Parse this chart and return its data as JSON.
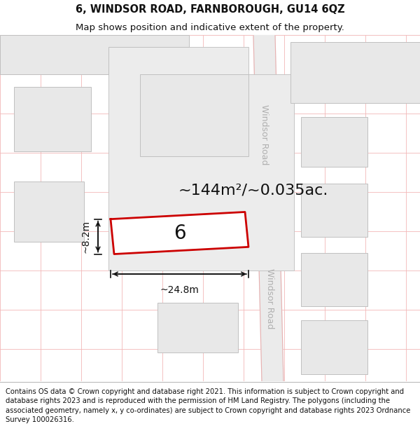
{
  "title": "6, WINDSOR ROAD, FARNBOROUGH, GU14 6QZ",
  "subtitle": "Map shows position and indicative extent of the property.",
  "footer": "Contains OS data © Crown copyright and database right 2021. This information is subject to Crown copyright and database rights 2023 and is reproduced with the permission of HM Land Registry. The polygons (including the associated geometry, namely x, y co-ordinates) are subject to Crown copyright and database rights 2023 Ordnance Survey 100026316.",
  "map_bg": "#f7f7f7",
  "road_fill": "#ebebeb",
  "road_line_color": "#e8b0b0",
  "grid_line_color": "#f2b8b8",
  "plot_outline_color": "#cc0000",
  "building_fill": "#e8e8e8",
  "building_stroke": "#c0c0c0",
  "lot_fill": "#e5e5e5",
  "lot_stroke": "#c8c8c8",
  "road_label": "Windsor Road",
  "plot_number": "6",
  "area_label": "~144m²/~0.035ac.",
  "width_label": "~24.8m",
  "height_label": "~8.2m",
  "title_fontsize": 10.5,
  "subtitle_fontsize": 9.5,
  "footer_fontsize": 7.2,
  "area_fontsize": 16,
  "number_fontsize": 20,
  "dim_fontsize": 10,
  "road_label_fontsize": 9
}
